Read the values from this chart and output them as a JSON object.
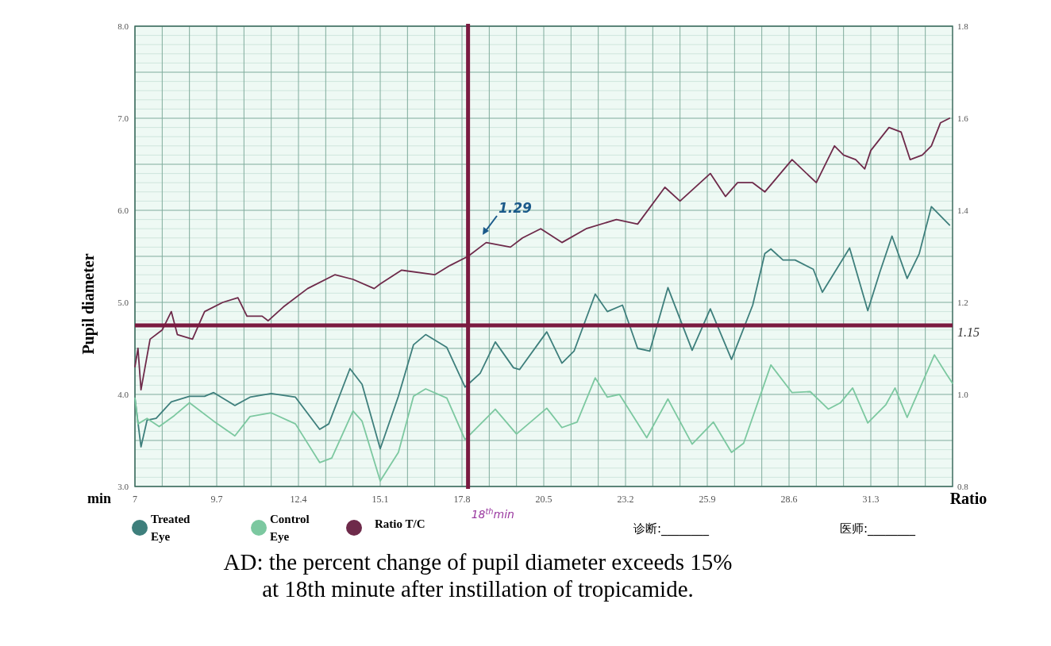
{
  "chart_data": {
    "type": "line",
    "ylabel": "Pupil diameter",
    "xlabel": "min",
    "y2label": "Ratio",
    "xlim": [
      7,
      34
    ],
    "xticks": [
      7,
      {
        "value": 7.9,
        "label": null
      },
      {
        "value": 8.8,
        "label": null
      },
      9.7,
      {
        "value": 10.6,
        "label": null
      },
      {
        "value": 11.5,
        "label": null
      },
      12.4,
      {
        "value": 13.3,
        "label": null
      },
      {
        "value": 14.2,
        "label": null
      },
      15.1,
      {
        "value": 16,
        "label": null
      },
      {
        "value": 16.9,
        "label": null
      },
      17.8,
      {
        "value": 18.7,
        "label": null
      },
      {
        "value": 19.6,
        "label": null
      },
      20.5,
      {
        "value": 21.4,
        "label": null
      },
      {
        "value": 22.3,
        "label": null
      },
      23.2,
      {
        "value": 24.1,
        "label": null
      },
      {
        "value": 25,
        "label": null
      },
      25.9,
      {
        "value": 26.8,
        "label": null
      },
      {
        "value": 27.7,
        "label": null
      },
      28.6,
      {
        "value": 29.5,
        "label": null
      },
      {
        "value": 30.4,
        "label": null
      },
      31.3,
      {
        "value": 32.2,
        "label": null
      },
      {
        "value": 33.1,
        "label": null
      }
    ],
    "ylim": [
      3,
      8
    ],
    "yticks": [
      {
        "value": 3,
        "label": "3.0"
      },
      {
        "value": 3.5,
        "label": null
      },
      {
        "value": 4,
        "label": "4.0"
      },
      {
        "value": 4.5,
        "label": null
      },
      {
        "value": 5,
        "label": "5.0"
      },
      {
        "value": 5.5,
        "label": null
      },
      {
        "value": 6,
        "label": "6.0"
      },
      {
        "value": 6.5,
        "label": null
      },
      {
        "value": 7,
        "label": "7.0"
      },
      {
        "value": 7.5,
        "label": null
      },
      {
        "value": 8,
        "label": "8.0"
      }
    ],
    "y2lim": [
      0.8,
      1.8
    ],
    "y2ticks": [
      0.8,
      {
        "value": 1,
        "label": "1.0"
      },
      1.2,
      1.4,
      1.6,
      1.8
    ],
    "grid": true,
    "legend": "bottom left",
    "series": [
      {
        "name": "Treated Eye",
        "color": "#3e7f7c",
        "x": [
          7.0,
          7.2,
          7.4,
          7.7,
          8.2,
          8.8,
          9.3,
          9.6,
          10.3,
          10.8,
          11.5,
          12.3,
          13.1,
          13.4,
          14.1,
          14.5,
          15.1,
          15.7,
          16.2,
          16.6,
          17.3,
          17.9,
          18.4,
          18.9,
          19.5,
          19.7,
          20.6,
          21.1,
          21.5,
          22.2,
          22.6,
          23.1,
          23.6,
          24.0,
          24.6,
          25.4,
          26.0,
          26.7,
          27.4,
          27.8,
          28.0,
          28.4,
          28.8,
          29.4,
          29.7,
          30.6,
          31.2,
          31.6,
          32.0,
          32.5,
          32.9,
          33.3,
          33.9
        ],
        "values": [
          3.96,
          3.43,
          3.72,
          3.74,
          3.92,
          3.98,
          3.98,
          4.02,
          3.88,
          3.97,
          4.01,
          3.97,
          3.62,
          3.68,
          4.28,
          4.11,
          3.41,
          3.98,
          4.54,
          4.65,
          4.51,
          4.08,
          4.23,
          4.57,
          4.29,
          4.27,
          4.68,
          4.34,
          4.47,
          5.09,
          4.9,
          4.97,
          4.5,
          4.47,
          5.16,
          4.48,
          4.93,
          4.38,
          4.97,
          5.53,
          5.58,
          5.46,
          5.46,
          5.36,
          5.11,
          5.59,
          4.91,
          5.33,
          5.72,
          5.26,
          5.53,
          6.04,
          5.84
        ]
      },
      {
        "name": "Control Eye",
        "color": "#7cc8a0",
        "x": [
          7.0,
          7.1,
          7.4,
          7.8,
          8.3,
          8.8,
          9.6,
          10.3,
          10.8,
          11.5,
          12.3,
          13.1,
          13.5,
          14.2,
          14.5,
          15.1,
          15.7,
          16.2,
          16.6,
          17.3,
          17.9,
          18.9,
          19.6,
          20.6,
          21.1,
          21.6,
          22.2,
          22.6,
          23.0,
          23.9,
          24.6,
          25.4,
          26.1,
          26.7,
          27.1,
          28.0,
          28.7,
          29.3,
          29.9,
          30.3,
          30.7,
          31.2,
          31.8,
          32.1,
          32.5,
          33.4,
          33.8,
          34.0
        ],
        "values": [
          3.96,
          3.68,
          3.74,
          3.65,
          3.77,
          3.91,
          3.71,
          3.55,
          3.76,
          3.8,
          3.68,
          3.26,
          3.31,
          3.82,
          3.71,
          3.06,
          3.37,
          3.98,
          4.06,
          3.96,
          3.51,
          3.84,
          3.57,
          3.85,
          3.64,
          3.7,
          4.18,
          3.97,
          4.0,
          3.53,
          3.95,
          3.46,
          3.7,
          3.37,
          3.47,
          4.32,
          4.02,
          4.03,
          3.84,
          3.91,
          4.07,
          3.69,
          3.89,
          4.07,
          3.75,
          4.43,
          4.22,
          4.12
        ]
      },
      {
        "name": "Ratio T/C",
        "color": "#6e2a4a",
        "axis": "y2",
        "x": [
          7.0,
          7.1,
          7.2,
          7.5,
          7.9,
          8.2,
          8.4,
          8.9,
          9.3,
          9.9,
          10.4,
          10.7,
          11.2,
          11.4,
          11.9,
          12.7,
          13.6,
          14.2,
          14.9,
          15.1,
          15.8,
          16.9,
          17.4,
          18.0,
          18.6,
          19.4,
          19.8,
          20.4,
          21.1,
          21.9,
          22.9,
          23.6,
          24.5,
          25.0,
          26.0,
          26.5,
          26.9,
          27.4,
          27.8,
          28.7,
          29.5,
          30.1,
          30.4,
          30.8,
          31.1,
          31.3,
          31.9,
          32.3,
          32.6,
          33.0,
          33.3,
          33.6,
          33.9
        ],
        "values": [
          1.06,
          1.1,
          1.01,
          1.12,
          1.14,
          1.18,
          1.13,
          1.12,
          1.18,
          1.2,
          1.21,
          1.17,
          1.17,
          1.16,
          1.19,
          1.23,
          1.26,
          1.25,
          1.23,
          1.24,
          1.27,
          1.26,
          1.28,
          1.3,
          1.33,
          1.32,
          1.34,
          1.36,
          1.33,
          1.36,
          1.38,
          1.37,
          1.45,
          1.42,
          1.48,
          1.43,
          1.46,
          1.46,
          1.44,
          1.51,
          1.46,
          1.54,
          1.52,
          1.51,
          1.49,
          1.53,
          1.58,
          1.57,
          1.51,
          1.52,
          1.54,
          1.59,
          1.6
        ]
      }
    ],
    "ref_lines": [
      {
        "axis": "y2",
        "value": 1.15,
        "label": "1.15",
        "color": "#7a1a40"
      },
      {
        "axis": "x",
        "value": 18,
        "label": "18$^{th}$min",
        "color": "#7a1a40"
      }
    ],
    "annotations": [
      "1.29",
      "诊断:________",
      "医师:________",
      "AD: the percent change of pupil diameter exceeds 15% at 18th minute after instillation of tropicamide."
    ]
  }
}
